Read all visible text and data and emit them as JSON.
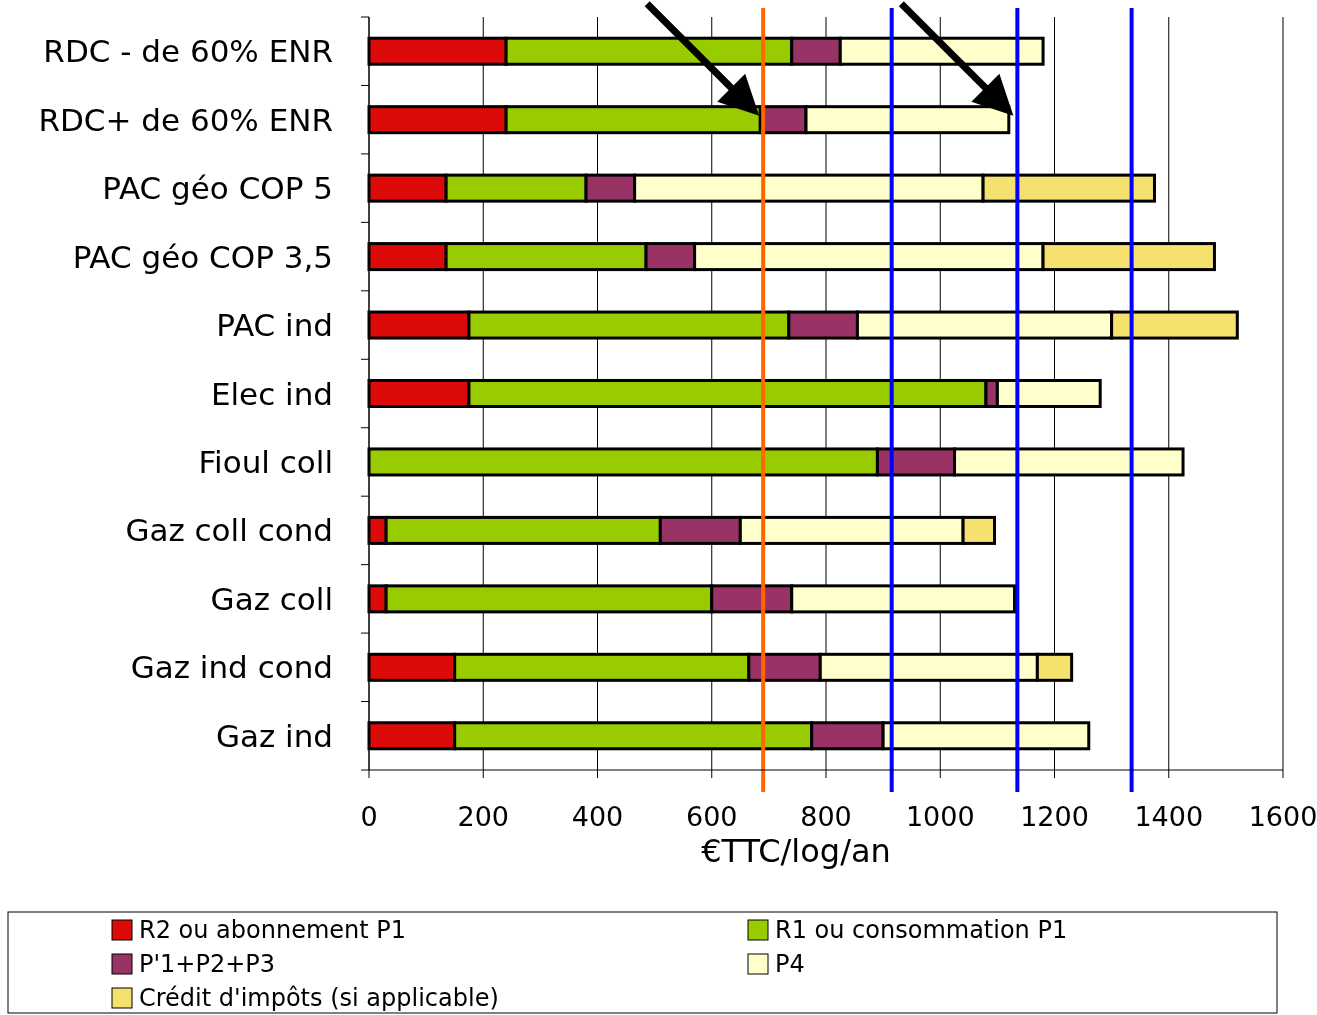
{
  "chart_data": {
    "type": "bar",
    "orientation": "horizontal",
    "stacked": true,
    "categories": [
      "RDC - de 60% ENR",
      "RDC+ de 60% ENR",
      "PAC géo COP 5",
      "PAC géo COP 3,5",
      "PAC ind",
      "Elec ind",
      "Fioul coll",
      "Gaz coll cond",
      "Gaz coll",
      "Gaz ind cond",
      "Gaz ind"
    ],
    "series": [
      {
        "name": "R2 ou abonnement P1",
        "color": "#dd0a0a",
        "values": [
          240,
          240,
          135,
          135,
          175,
          175,
          0,
          30,
          30,
          150,
          150
        ]
      },
      {
        "name": "R1 ou consommation P1",
        "color": "#99cc00",
        "values": [
          500,
          445,
          245,
          350,
          560,
          905,
          890,
          480,
          570,
          515,
          625
        ]
      },
      {
        "name": "P'1+P2+P3",
        "color": "#993366",
        "values": [
          85,
          80,
          85,
          85,
          120,
          20,
          135,
          140,
          140,
          125,
          125
        ]
      },
      {
        "name": "P4",
        "color": "#ffffcc",
        "values": [
          355,
          355,
          610,
          610,
          445,
          180,
          400,
          390,
          390,
          380,
          360
        ]
      },
      {
        "name": "Crédit d'impôts (si applicable)",
        "color": "#f5e26e",
        "values": [
          null,
          null,
          300,
          300,
          220,
          null,
          null,
          55,
          null,
          60,
          null
        ]
      }
    ],
    "xlim": [
      0,
      1600
    ],
    "xticks": [
      0,
      200,
      400,
      600,
      800,
      1000,
      1200,
      1400,
      1600
    ],
    "xlabel": "€TTC/log/an",
    "grid": "x",
    "legend": "bottom",
    "ref_lines": [
      {
        "axis": "x",
        "value": 690,
        "color": "#ff6600"
      },
      {
        "axis": "x",
        "value": 915,
        "color": "#0000ff"
      },
      {
        "axis": "x",
        "value": 1135,
        "color": "#0000ff"
      },
      {
        "axis": "x",
        "value": 1335,
        "color": "#0000ff"
      }
    ]
  }
}
